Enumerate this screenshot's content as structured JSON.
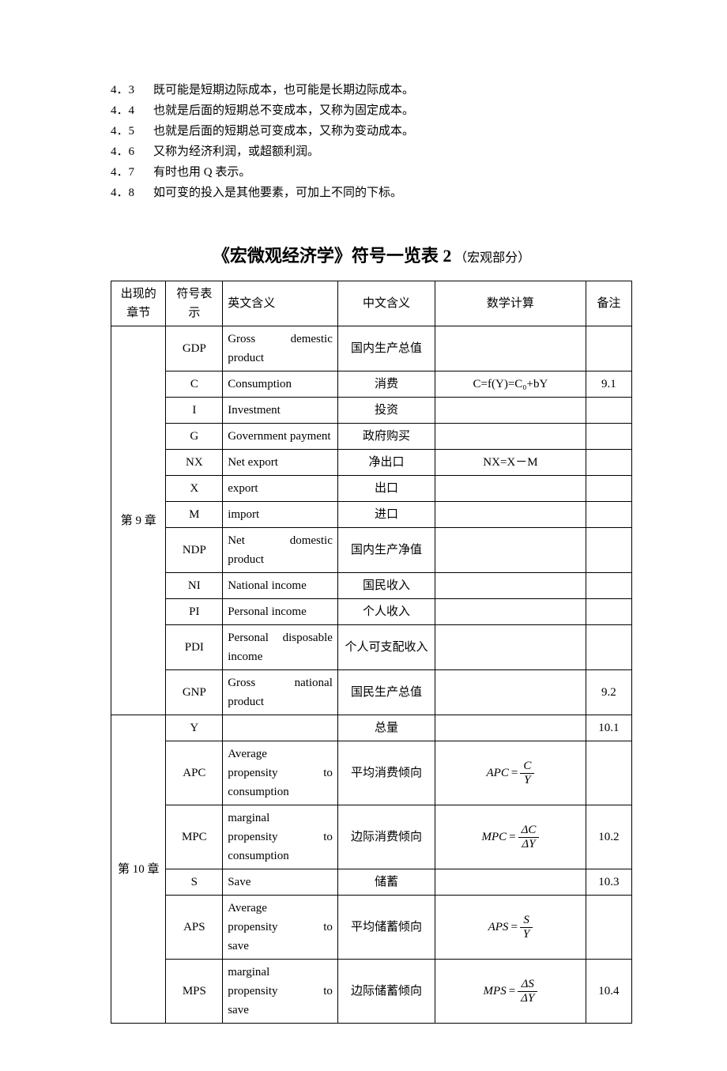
{
  "notes": [
    {
      "num": "4．3",
      "text": "既可能是短期边际成本，也可能是长期边际成本。"
    },
    {
      "num": "4．4",
      "text": "也就是后面的短期总不变成本，又称为固定成本。"
    },
    {
      "num": "4．5",
      "text": "也就是后面的短期总可变成本，又称为变动成本。"
    },
    {
      "num": "4．6",
      "text": "又称为经济利润，或超额利润。"
    },
    {
      "num": "4．7",
      "text": "有时也用 Q 表示。"
    },
    {
      "num": "4．8",
      "text": "如可变的投入是其他要素，可加上不同的下标。"
    }
  ],
  "title": {
    "main": "《宏微观经济学》符号一览表 2",
    "sub": "（宏观部分）"
  },
  "headers": {
    "chapter": "出现的章节",
    "symbol": "符号表示",
    "en": "英文含义",
    "cn": "中文含义",
    "math": "数学计算",
    "note": "备注"
  },
  "groups": [
    {
      "chapter": "第 9 章",
      "rows": [
        {
          "sym": "GDP",
          "en_parts": [
            "Gross",
            "demestic"
          ],
          "en_last": "product",
          "cn": "国内生产总值",
          "math": "",
          "note": ""
        },
        {
          "sym": "C",
          "en": "Consumption",
          "cn": "消费",
          "math_plain": "C=f(Y)=C₀+bY",
          "note": "9.1"
        },
        {
          "sym": "I",
          "en": "Investment",
          "cn": "投资",
          "math": "",
          "note": ""
        },
        {
          "sym": "G",
          "en_plain": "Government payment",
          "cn": "政府购买",
          "math": "",
          "note": ""
        },
        {
          "sym": "NX",
          "en": "Net export",
          "cn": "净出口",
          "math_plain": "NX=X－M",
          "note": ""
        },
        {
          "sym": "X",
          "en": "export",
          "cn": "出口",
          "math": "",
          "note": ""
        },
        {
          "sym": "M",
          "en": "import",
          "cn": "进口",
          "math": "",
          "note": ""
        },
        {
          "sym": "NDP",
          "en_parts": [
            "Net",
            "domestic"
          ],
          "en_last": "product",
          "cn": "国内生产净值",
          "math": "",
          "note": ""
        },
        {
          "sym": "NI",
          "en": "National income",
          "cn": "国民收入",
          "math": "",
          "note": ""
        },
        {
          "sym": "PI",
          "en": "Personal income",
          "cn": "个人收入",
          "math": "",
          "note": ""
        },
        {
          "sym": "PDI",
          "en_plain": "Personal disposable income",
          "cn": "个人可支配收入",
          "math": "",
          "note": ""
        },
        {
          "sym": "GNP",
          "en_parts": [
            "Gross",
            "national"
          ],
          "en_last": "product",
          "cn": "国民生产总值",
          "math": "",
          "note": "9.2"
        }
      ]
    },
    {
      "chapter": "第 10 章",
      "rows": [
        {
          "sym": "Y",
          "en": "",
          "cn": "总量",
          "math": "",
          "note": "10.1"
        },
        {
          "sym": "APC",
          "en_parts": [
            "Average"
          ],
          "en_mid": [
            "propensity",
            "to"
          ],
          "en_last": "consumption",
          "cn": "平均消费倾向",
          "frac": {
            "lhs": "APC",
            "num": "C",
            "den": "Y"
          },
          "note": ""
        },
        {
          "sym": "MPC",
          "en_parts": [
            "marginal"
          ],
          "en_mid": [
            "propensity",
            "to"
          ],
          "en_last": "consumption",
          "cn": "边际消费倾向",
          "frac": {
            "lhs": "MPC",
            "num": "ΔC",
            "den": "ΔY"
          },
          "note": "10.2"
        },
        {
          "sym": "S",
          "en": "Save",
          "cn": "储蓄",
          "math": "",
          "note": "10.3"
        },
        {
          "sym": "APS",
          "en_parts": [
            "Average"
          ],
          "en_mid": [
            "propensity",
            "to"
          ],
          "en_last": "save",
          "cn": "平均储蓄倾向",
          "frac": {
            "lhs": "APS",
            "num": "S",
            "den": "Y"
          },
          "note": ""
        },
        {
          "sym": "MPS",
          "en_parts": [
            "marginal"
          ],
          "en_mid": [
            "propensity",
            "to"
          ],
          "en_last": "save",
          "cn": "边际储蓄倾向",
          "frac": {
            "lhs": "MPS",
            "num": "ΔS",
            "den": "ΔY"
          },
          "note": "10.4"
        }
      ]
    }
  ]
}
